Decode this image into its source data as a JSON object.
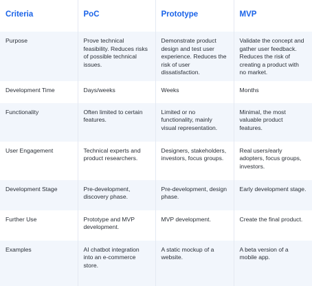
{
  "table": {
    "headers": [
      "Criteria",
      "PoC",
      "Prototype",
      "MVP"
    ],
    "rows": [
      [
        "Purpose",
        "Prove technical feasibility. Reduces risks of possible technical issues.",
        "Demonstrate product design and test user experience. Reduces the risk of user dissatisfaction.",
        "Validate the concept and gather user feedback. Reduces the risk of creating a product with no market."
      ],
      [
        "Development Time",
        "Days/weeks",
        "Weeks",
        "Months"
      ],
      [
        "Functionality",
        "Often limited to certain features.",
        "Limited or no functionality, mainly visual representation.",
        "Minimal, the most valuable product features."
      ],
      [
        "User Engagement",
        "Technical experts and product researchers.",
        "Designers, stakeholders, investors, focus groups.",
        "Real users/early adopters, focus groups, investors."
      ],
      [
        "Development Stage",
        "Pre-development, discovery phase.",
        "Pre-development, design phase.",
        "Early development stage."
      ],
      [
        "Further Use",
        "Prototype and MVP development.",
        "MVP development.",
        "Create the final product."
      ],
      [
        "Examples",
        "AI chatbot integration into an e-commerce store.",
        "A static mockup of a website.",
        "A beta version of a mobile app."
      ]
    ]
  },
  "colors": {
    "header_text": "#1a63e8",
    "row_alt_background": "#f2f6fc",
    "divider": "#e4e9f2"
  }
}
